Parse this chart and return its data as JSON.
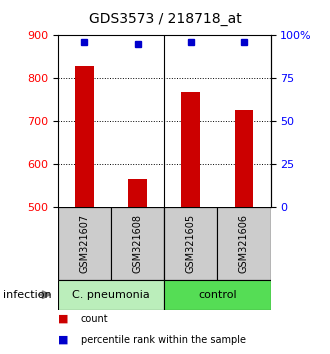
{
  "title": "GDS3573 / 218718_at",
  "samples": [
    "GSM321607",
    "GSM321608",
    "GSM321605",
    "GSM321606"
  ],
  "counts": [
    828,
    566,
    768,
    726
  ],
  "percentiles": [
    96,
    95,
    96,
    96
  ],
  "ymin": 500,
  "ymax": 900,
  "yticks_left": [
    500,
    600,
    700,
    800,
    900
  ],
  "yticks_right": [
    0,
    25,
    50,
    75,
    100
  ],
  "bar_color": "#cc0000",
  "dot_color": "#0000cc",
  "group1_label": "C. pneumonia",
  "group2_label": "control",
  "group1_color": "#bbeebb",
  "group2_color": "#55dd55",
  "sample_box_color": "#cccccc",
  "infection_label": "infection",
  "legend_count_label": "count",
  "legend_pct_label": "percentile rank within the sample",
  "bar_width": 0.35,
  "title_fontsize": 10,
  "tick_fontsize": 8,
  "label_fontsize": 7,
  "group_fontsize": 8
}
